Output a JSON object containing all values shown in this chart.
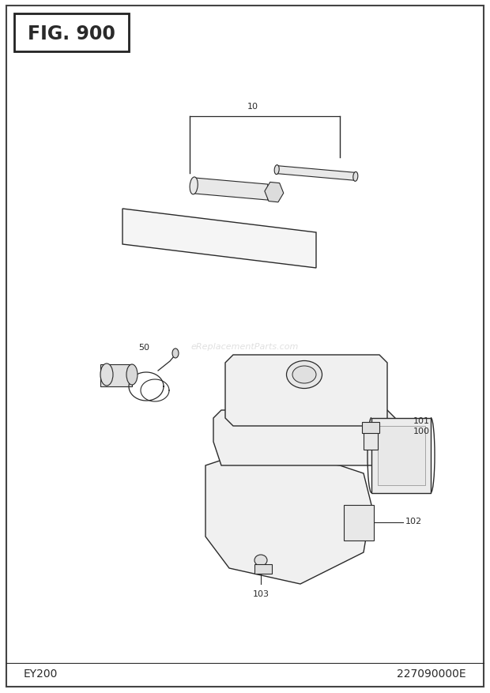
{
  "title": "FIG. 900",
  "bottom_left": "EY200",
  "bottom_right": "227090000E",
  "bg_color": "#ffffff",
  "line_color": "#2a2a2a",
  "fig_width": 6.2,
  "fig_height": 8.78,
  "dpi": 100
}
